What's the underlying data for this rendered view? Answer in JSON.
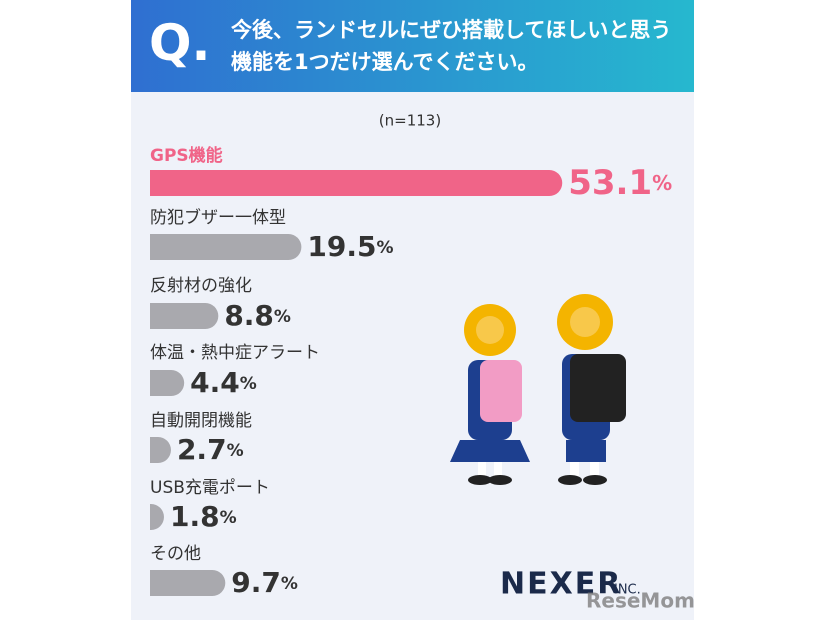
{
  "header": {
    "mark": "Q.",
    "title": "今後、ランドセルにぜひ搭載してほしいと思う\n機能を1つだけ選んでください。"
  },
  "chart_data": {
    "type": "bar",
    "orientation": "horizontal",
    "subtitle": "(n=113)",
    "categories": [
      "GPS機能",
      "防犯ブザー一体型",
      "反射材の強化",
      "体温・熱中症アラート",
      "自動開閉機能",
      "USB充電ポート",
      "その他"
    ],
    "values": [
      53.1,
      19.5,
      8.8,
      4.4,
      2.7,
      1.8,
      9.7
    ],
    "value_labels": [
      "53.1%",
      "19.5%",
      "8.8%",
      "4.4%",
      "2.7%",
      "1.8%",
      "9.7%"
    ],
    "highlight_color": "#f06488",
    "color": "#a9a9ae",
    "xlim": [
      0,
      55
    ]
  },
  "footer": {
    "logo": "NEXER",
    "logo_suffix": "INC.",
    "watermark": "ReseMom"
  }
}
